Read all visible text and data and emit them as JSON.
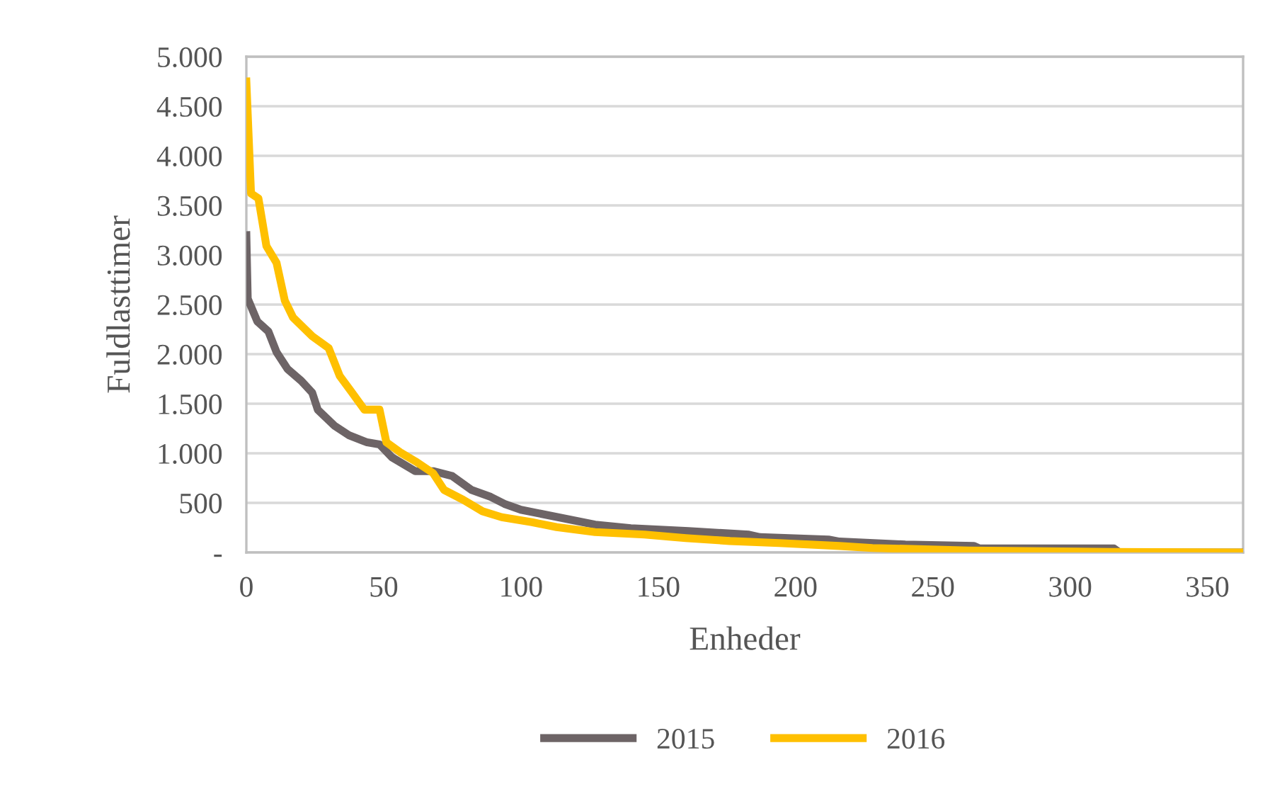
{
  "chart_data": {
    "type": "line",
    "xlabel": "Enheder",
    "ylabel": "Fuldlasttimer",
    "xlim": [
      0,
      363
    ],
    "xticks": [
      0,
      50,
      100,
      150,
      200,
      250,
      300,
      350
    ],
    "ylim": [
      0,
      5000
    ],
    "yticks": [
      {
        "value": 0,
        "label": "-"
      },
      {
        "value": 500,
        "label": "500"
      },
      {
        "value": 1000,
        "label": "1.000"
      },
      {
        "value": 1500,
        "label": "1.500"
      },
      {
        "value": 2000,
        "label": "2.000"
      },
      {
        "value": 2500,
        "label": "2.500"
      },
      {
        "value": 3000,
        "label": "3.000"
      },
      {
        "value": 3500,
        "label": "3.500"
      },
      {
        "value": 4000,
        "label": "4.000"
      },
      {
        "value": 4500,
        "label": "4.500"
      },
      {
        "value": 5000,
        "label": "5.000"
      }
    ],
    "grid": "y",
    "legend": "bottom",
    "line_style": "solid",
    "marker": "none",
    "series": [
      {
        "name": "2015",
        "color": "#6d6466",
        "x": [
          0,
          0.5,
          4,
          8,
          11,
          15,
          20,
          24,
          26,
          32,
          37.5,
          44,
          48.5,
          53,
          61.5,
          68,
          75,
          82,
          89,
          94,
          100,
          109,
          118,
          127,
          140,
          161,
          183,
          187,
          212,
          216,
          240,
          265,
          267,
          316,
          318,
          363
        ],
        "values": [
          3200,
          2560,
          2330,
          2230,
          2020,
          1850,
          1730,
          1610,
          1440,
          1280,
          1180,
          1110,
          1090,
          960,
          820,
          820,
          770,
          630,
          560,
          490,
          430,
          380,
          330,
          280,
          245,
          215,
          180,
          155,
          130,
          110,
          80,
          65,
          40,
          40,
          0,
          0
        ]
      },
      {
        "name": "2016",
        "color": "#ffc000",
        "x": [
          0,
          1.7,
          4.4,
          7.3,
          11,
          14,
          17,
          24,
          30,
          34,
          38,
          43,
          48.5,
          51,
          56,
          61.5,
          68,
          72,
          79,
          86,
          93,
          104,
          113,
          127,
          145,
          160,
          176,
          194,
          216,
          228,
          263,
          315,
          363
        ],
        "values": [
          4750,
          3620,
          3570,
          3090,
          2920,
          2540,
          2370,
          2180,
          2060,
          1780,
          1630,
          1440,
          1440,
          1110,
          1010,
          920,
          800,
          630,
          530,
          415,
          355,
          305,
          255,
          205,
          180,
          145,
          115,
          95,
          65,
          45,
          20,
          5,
          0
        ]
      }
    ]
  }
}
